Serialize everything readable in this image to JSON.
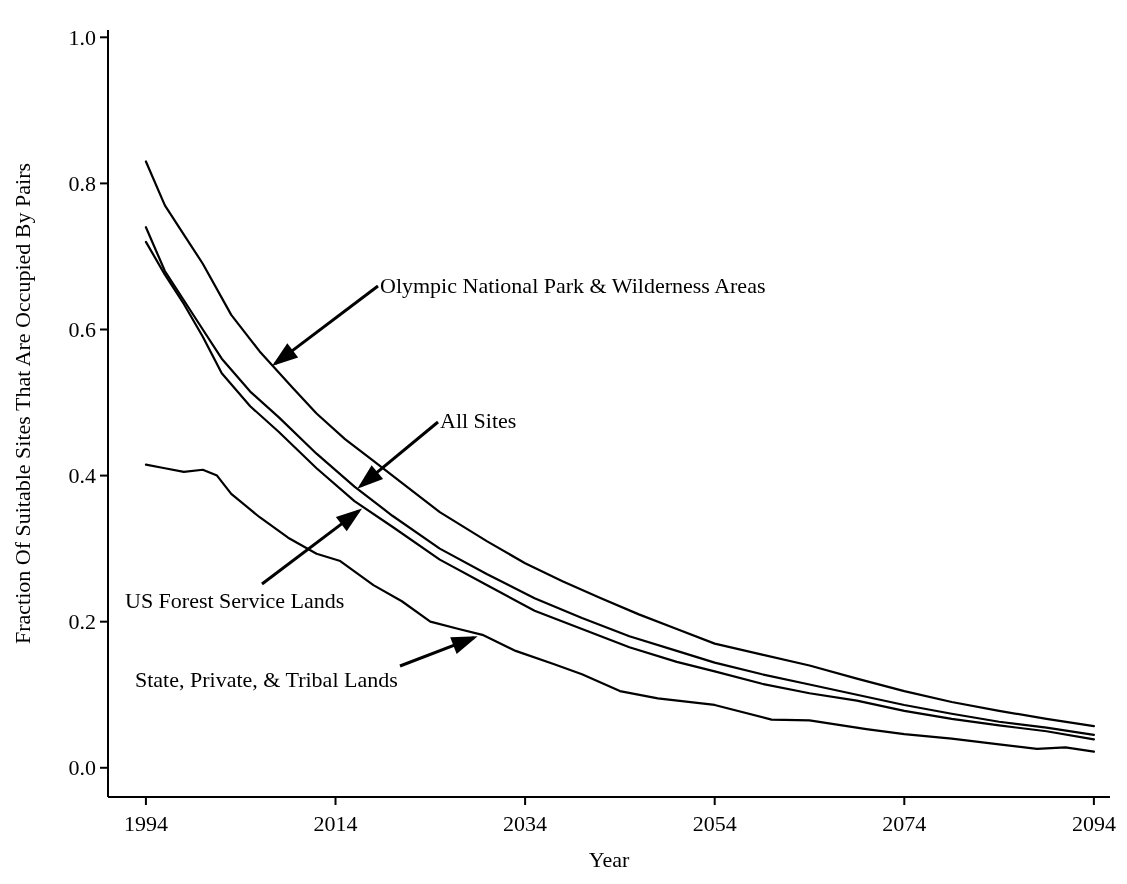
{
  "chart_data": {
    "type": "line",
    "xlabel": "Year",
    "ylabel": "Fraction Of Suitable Sites That Are Occupied By Pairs",
    "xlim": [
      1990,
      2095.7
    ],
    "ylim": [
      -0.04,
      1.01
    ],
    "xticks": [
      1994,
      2014,
      2034,
      2054,
      2074,
      2094
    ],
    "yticks": [
      {
        "value": 0,
        "label": "0.0"
      },
      {
        "value": 0.2,
        "label": "0.2"
      },
      {
        "value": 0.4,
        "label": "0.4"
      },
      {
        "value": 0.6,
        "label": "0.6"
      },
      {
        "value": 0.8,
        "label": "0.8"
      },
      {
        "value": 1,
        "label": "1.0"
      }
    ],
    "grid": false,
    "marker": "none",
    "line_style": "solid",
    "series": [
      {
        "color": "#000000",
        "x": [
          1994,
          1996,
          1998,
          2000,
          2003,
          2006,
          2009.5,
          2012,
          2015,
          2018,
          2021,
          2025,
          2030,
          2034,
          2038,
          2042,
          2046,
          2050,
          2054,
          2059,
          2064,
          2069,
          2074,
          2079,
          2084,
          2089,
          2094
        ],
        "values": [
          0.83,
          0.77,
          0.73,
          0.69,
          0.62,
          0.57,
          0.52,
          0.485,
          0.45,
          0.42,
          0.39,
          0.35,
          0.31,
          0.28,
          0.255,
          0.232,
          0.21,
          0.19,
          0.17,
          0.155,
          0.14,
          0.122,
          0.105,
          0.09,
          0.078,
          0.067,
          0.057
        ]
      },
      {
        "color": "#000000",
        "x": [
          1994,
          1996,
          1998,
          2000,
          2002,
          2005,
          2008,
          2012,
          2016,
          2020,
          2025,
          2030,
          2035,
          2040,
          2045,
          2050,
          2054,
          2059,
          2064,
          2069,
          2074,
          2079,
          2084,
          2089,
          2094
        ],
        "values": [
          0.74,
          0.68,
          0.64,
          0.6,
          0.56,
          0.515,
          0.48,
          0.43,
          0.385,
          0.345,
          0.3,
          0.265,
          0.232,
          0.205,
          0.18,
          0.16,
          0.144,
          0.128,
          0.114,
          0.1,
          0.086,
          0.074,
          0.063,
          0.055,
          0.045
        ]
      },
      {
        "color": "#000000",
        "x": [
          1994,
          1996,
          1998,
          2000,
          2002,
          2005,
          2008,
          2012,
          2016,
          2020,
          2025,
          2030,
          2035,
          2040,
          2045,
          2050,
          2054,
          2059,
          2064,
          2069,
          2074,
          2079,
          2084,
          2089,
          2094
        ],
        "values": [
          0.72,
          0.675,
          0.635,
          0.59,
          0.54,
          0.495,
          0.46,
          0.41,
          0.365,
          0.33,
          0.285,
          0.25,
          0.215,
          0.19,
          0.165,
          0.145,
          0.132,
          0.115,
          0.102,
          0.092,
          0.078,
          0.067,
          0.058,
          0.05,
          0.039
        ]
      },
      {
        "color": "#000000",
        "x": [
          1994,
          1996,
          1998,
          2000,
          2001.5,
          2003,
          2006,
          2009,
          2012,
          2014.5,
          2018,
          2021,
          2024,
          2027,
          2029.5,
          2033,
          2037,
          2040,
          2044,
          2048,
          2054,
          2060,
          2064,
          2070,
          2074,
          2079,
          2084,
          2088,
          2091,
          2094
        ],
        "values": [
          0.415,
          0.41,
          0.405,
          0.408,
          0.4,
          0.375,
          0.343,
          0.315,
          0.293,
          0.283,
          0.25,
          0.228,
          0.2,
          0.19,
          0.182,
          0.16,
          0.142,
          0.128,
          0.105,
          0.095,
          0.086,
          0.066,
          0.065,
          0.053,
          0.046,
          0.04,
          0.032,
          0.026,
          0.028,
          0.022
        ]
      }
    ],
    "annotations": [
      {
        "text": "Olympic National Park & Wilderness Areas",
        "x": 2007.3,
        "y": 0.55
      },
      {
        "text": "All Sites",
        "x": 2016.3,
        "y": 0.382
      },
      {
        "text": "US Forest Service Lands",
        "x": 2016.8,
        "y": 0.355
      },
      {
        "text": "State, Private, & Tribal Lands",
        "x": 2029,
        "y": 0.18
      }
    ]
  }
}
